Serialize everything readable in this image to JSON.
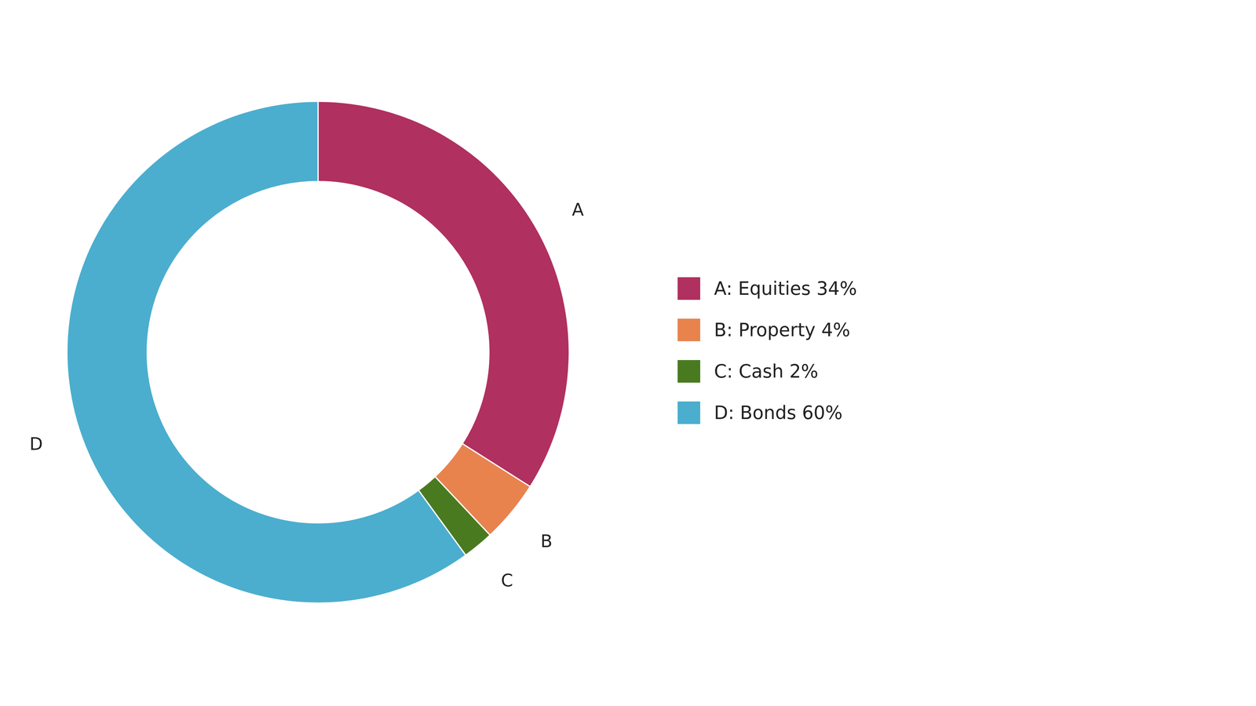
{
  "chart_data": {
    "type": "pie",
    "categories": [
      "A: Equities 34%",
      "B: Property 4%",
      "C: Cash 2%",
      "D: Bonds 60%"
    ],
    "labels": [
      "A",
      "B",
      "C",
      "D"
    ],
    "values": [
      34,
      4,
      2,
      60
    ],
    "colors": [
      "#b03060",
      "#e8834e",
      "#4a7a20",
      "#4baece"
    ],
    "data_labels": false,
    "legend": "right"
  }
}
